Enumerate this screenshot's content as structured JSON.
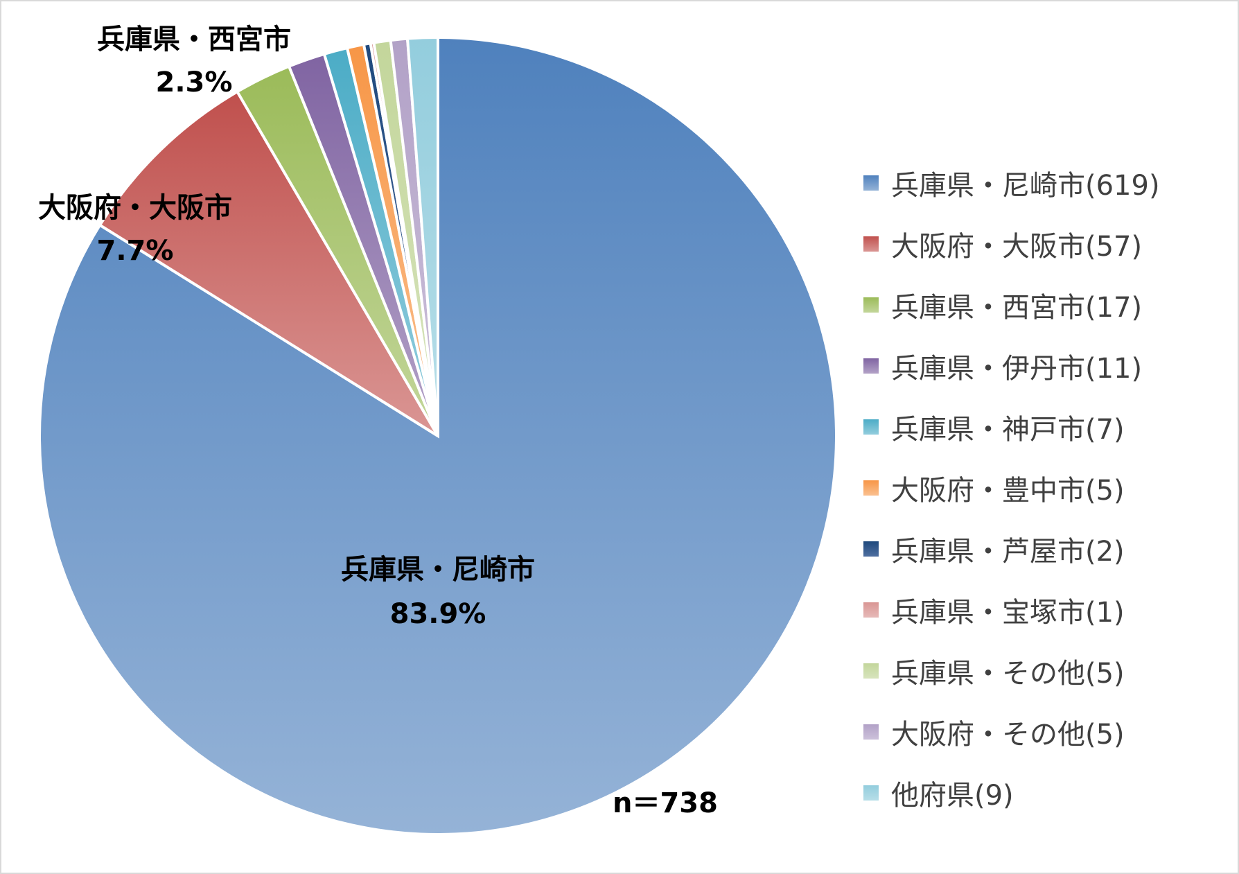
{
  "chart_data": {
    "type": "pie",
    "start_angle_deg": 0,
    "direction": "clockwise",
    "slices": [
      {
        "label": "兵庫県・尼崎市",
        "count": 619,
        "legend": "兵庫県・尼崎市(619)",
        "percent_label": "83.9%",
        "color_top": "#4f81bd",
        "color_bottom": "#95b3d7",
        "show_label": true
      },
      {
        "label": "大阪府・大阪市",
        "count": 57,
        "legend": "大阪府・大阪市(57)",
        "percent_label": "7.7%",
        "color_top": "#c0504d",
        "color_bottom": "#da9694",
        "show_label": true
      },
      {
        "label": "兵庫県・西宮市",
        "count": 17,
        "legend": "兵庫県・西宮市(17)",
        "percent_label": "2.3%",
        "color_top": "#9bbb59",
        "color_bottom": "#c3d69b",
        "show_label": true
      },
      {
        "label": "兵庫県・伊丹市",
        "count": 11,
        "legend": "兵庫県・伊丹市(11)",
        "percent_label": "",
        "color_top": "#8064a2",
        "color_bottom": "#b3a2c7",
        "show_label": false
      },
      {
        "label": "兵庫県・神戸市",
        "count": 7,
        "legend": "兵庫県・神戸市(7)",
        "percent_label": "",
        "color_top": "#4bacc6",
        "color_bottom": "#93cddd",
        "show_label": false
      },
      {
        "label": "大阪府・豊中市",
        "count": 5,
        "legend": "大阪府・豊中市(5)",
        "percent_label": "",
        "color_top": "#f79646",
        "color_bottom": "#fac090",
        "show_label": false
      },
      {
        "label": "兵庫県・芦屋市",
        "count": 2,
        "legend": "兵庫県・芦屋市(2)",
        "percent_label": "",
        "color_top": "#1f497d",
        "color_bottom": "#4f6fa0",
        "show_label": false
      },
      {
        "label": "兵庫県・宝塚市",
        "count": 1,
        "legend": "兵庫県・宝塚市(1)",
        "percent_label": "",
        "color_top": "#d99694",
        "color_bottom": "#e6b9b8",
        "show_label": false
      },
      {
        "label": "兵庫県・その他",
        "count": 5,
        "legend": "兵庫県・その他(5)",
        "percent_label": "",
        "color_top": "#c3d69b",
        "color_bottom": "#d7e4bd",
        "show_label": false
      },
      {
        "label": "大阪府・その他",
        "count": 5,
        "legend": "大阪府・その他(5)",
        "percent_label": "",
        "color_top": "#b2a1c7",
        "color_bottom": "#ccc1da",
        "show_label": false
      },
      {
        "label": "他府県",
        "count": 9,
        "legend": "他府県(9)",
        "percent_label": "",
        "color_top": "#93cddd",
        "color_bottom": "#b7dee8",
        "show_label": false
      }
    ],
    "legend_position": "right",
    "n_label": "n＝738"
  }
}
